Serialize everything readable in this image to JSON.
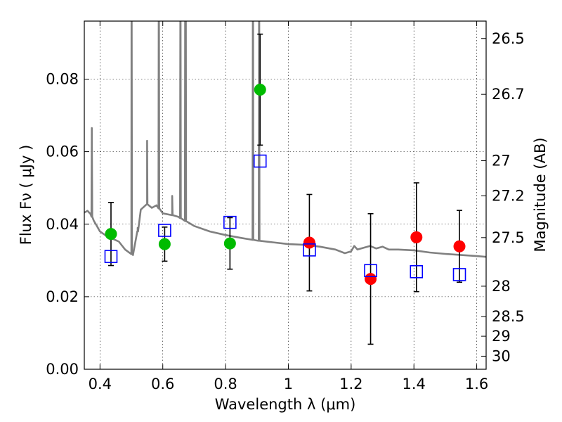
{
  "chart_data": {
    "type": "scatter",
    "xlabel": "Wavelength  λ (μm)",
    "ylabel": "Flux  Fν  ( μJy )",
    "ylabel_right": "Magnitude (AB)",
    "xlim": [
      0.35,
      1.63
    ],
    "ylim": [
      0.0,
      0.096
    ],
    "grid": true,
    "x_ticks": [
      0.4,
      0.6,
      0.8,
      1.0,
      1.2,
      1.4,
      1.6
    ],
    "x_tick_labels": [
      "0.4",
      "0.6",
      "0.8",
      "1",
      "1.2",
      "1.4",
      "1.6"
    ],
    "y_ticks": [
      0.0,
      0.02,
      0.04,
      0.06,
      0.08
    ],
    "y_tick_labels": [
      "0.00",
      "0.02",
      "0.04",
      "0.06",
      "0.08"
    ],
    "right_ticks": [
      {
        "label": "26.5",
        "flux": 0.0912
      },
      {
        "label": "26.7",
        "flux": 0.0758
      },
      {
        "label": "27",
        "flux": 0.0575
      },
      {
        "label": "27.2",
        "flux": 0.0478
      },
      {
        "label": "27.5",
        "flux": 0.0363
      },
      {
        "label": "28",
        "flux": 0.0229
      },
      {
        "label": "28.5",
        "flux": 0.0145
      },
      {
        "label": "29",
        "flux": 0.0091
      },
      {
        "label": "30",
        "flux": 0.0036
      }
    ],
    "series": [
      {
        "marker": "circle",
        "color": "#00bb00",
        "points": [
          {
            "x": 0.435,
            "y": 0.0373,
            "err_low": 0.0087,
            "err_high": 0.0087
          },
          {
            "x": 0.606,
            "y": 0.0345,
            "err_low": 0.0047,
            "err_high": 0.0047
          },
          {
            "x": 0.814,
            "y": 0.0347,
            "err_low": 0.0071,
            "err_high": 0.0071
          },
          {
            "x": 0.91,
            "y": 0.0771,
            "err_low": 0.0153,
            "err_high": 0.0153
          }
        ]
      },
      {
        "marker": "circle",
        "color": "#ff0000",
        "points": [
          {
            "x": 1.067,
            "y": 0.0349,
            "err_low": 0.0133,
            "err_high": 0.0133
          },
          {
            "x": 1.262,
            "y": 0.0249,
            "err_low": 0.018,
            "err_high": 0.018
          },
          {
            "x": 1.408,
            "y": 0.0364,
            "err_low": 0.015,
            "err_high": 0.015
          },
          {
            "x": 1.545,
            "y": 0.0339,
            "err_low": 0.0099,
            "err_high": 0.0099
          }
        ]
      },
      {
        "marker": "open-square",
        "color": "#0000ff",
        "points": [
          {
            "x": 0.435,
            "y": 0.0311
          },
          {
            "x": 0.606,
            "y": 0.0383
          },
          {
            "x": 0.814,
            "y": 0.0405
          },
          {
            "x": 0.91,
            "y": 0.0574
          },
          {
            "x": 1.067,
            "y": 0.0329
          },
          {
            "x": 1.262,
            "y": 0.0272
          },
          {
            "x": 1.408,
            "y": 0.0269
          },
          {
            "x": 1.545,
            "y": 0.0261
          }
        ]
      }
    ],
    "spectrum": {
      "color": "#808080",
      "continuum": [
        [
          0.35,
          0.0432
        ],
        [
          0.36,
          0.0437
        ],
        [
          0.37,
          0.0428
        ],
        [
          0.38,
          0.041
        ],
        [
          0.39,
          0.0395
        ],
        [
          0.4,
          0.038
        ],
        [
          0.42,
          0.0368
        ],
        [
          0.44,
          0.036
        ],
        [
          0.46,
          0.0352
        ],
        [
          0.48,
          0.033
        ],
        [
          0.5,
          0.0318
        ],
        [
          0.505,
          0.0315
        ],
        [
          0.52,
          0.038
        ],
        [
          0.53,
          0.044
        ],
        [
          0.55,
          0.0455
        ],
        [
          0.565,
          0.0445
        ],
        [
          0.58,
          0.0452
        ],
        [
          0.6,
          0.043
        ],
        [
          0.63,
          0.0425
        ],
        [
          0.65,
          0.042
        ],
        [
          0.7,
          0.0395
        ],
        [
          0.75,
          0.038
        ],
        [
          0.8,
          0.037
        ],
        [
          0.85,
          0.0362
        ],
        [
          0.9,
          0.0355
        ],
        [
          0.95,
          0.035
        ],
        [
          1.0,
          0.0345
        ],
        [
          1.05,
          0.0343
        ],
        [
          1.1,
          0.0338
        ],
        [
          1.15,
          0.033
        ],
        [
          1.18,
          0.032
        ],
        [
          1.2,
          0.0325
        ],
        [
          1.21,
          0.034
        ],
        [
          1.22,
          0.033
        ],
        [
          1.24,
          0.0335
        ],
        [
          1.26,
          0.034
        ],
        [
          1.28,
          0.0333
        ],
        [
          1.3,
          0.0338
        ],
        [
          1.32,
          0.033
        ],
        [
          1.35,
          0.033
        ],
        [
          1.4,
          0.0328
        ],
        [
          1.45,
          0.0322
        ],
        [
          1.5,
          0.0318
        ],
        [
          1.55,
          0.0315
        ],
        [
          1.6,
          0.0312
        ],
        [
          1.63,
          0.031
        ]
      ],
      "emission_lines": [
        {
          "x": 0.374,
          "peak": 0.0665
        },
        {
          "x": 0.5007,
          "peak": 0.12
        },
        {
          "x": 0.52,
          "peak": 0.039
        },
        {
          "x": 0.55,
          "peak": 0.063
        },
        {
          "x": 0.5875,
          "peak": 0.12
        },
        {
          "x": 0.63,
          "peak": 0.0478
        },
        {
          "x": 0.6563,
          "peak": 0.12
        },
        {
          "x": 0.6716,
          "peak": 0.12
        },
        {
          "x": 0.6731,
          "peak": 0.12
        },
        {
          "x": 0.8872,
          "peak": 0.12
        },
        {
          "x": 0.9069,
          "peak": 0.12
        }
      ]
    }
  }
}
